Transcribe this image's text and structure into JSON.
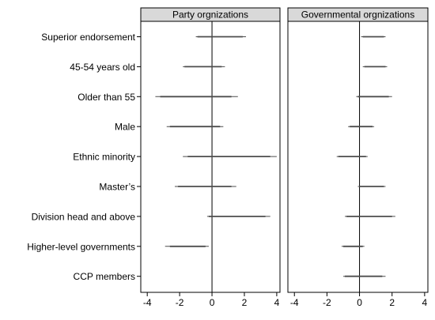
{
  "chart_data": {
    "type": "coefficient-plot",
    "categories": [
      "Superior endorsement",
      "45-54 years old",
      "Older than 55",
      "Male",
      "Ethnic minority",
      "Master’s",
      "Division head and above",
      "Higher-level governments",
      "CCP members"
    ],
    "x_ticks": [
      -4,
      -2,
      0,
      2,
      4
    ],
    "xlim": [
      -4.4,
      4.2
    ],
    "reference_line_x": 0,
    "colors": {
      "line": "#4d4d4d",
      "panel_header": "#d9d9d9",
      "frame": "#000000"
    },
    "panels": [
      {
        "title": "Party orgnizations",
        "intervals": [
          {
            "inner": [
              -0.9,
              1.9
            ],
            "outer": [
              -1.0,
              2.1
            ]
          },
          {
            "inner": [
              -1.7,
              0.6
            ],
            "outer": [
              -1.8,
              0.8
            ]
          },
          {
            "inner": [
              -3.2,
              1.2
            ],
            "outer": [
              -3.5,
              1.6
            ]
          },
          {
            "inner": [
              -2.6,
              0.5
            ],
            "outer": [
              -2.8,
              0.7
            ]
          },
          {
            "inner": [
              -1.5,
              3.6
            ],
            "outer": [
              -1.8,
              4.0
            ]
          },
          {
            "inner": [
              -2.1,
              1.2
            ],
            "outer": [
              -2.3,
              1.5
            ]
          },
          {
            "inner": [
              -0.2,
              3.3
            ],
            "outer": [
              -0.3,
              3.6
            ]
          },
          {
            "inner": [
              -2.6,
              -0.4
            ],
            "outer": [
              -2.9,
              -0.2
            ]
          },
          {
            "inner": null,
            "outer": null
          }
        ]
      },
      {
        "title": "Governmental orgnizations",
        "intervals": [
          {
            "inner": [
              0.2,
              1.5
            ],
            "outer": [
              0.1,
              1.6
            ]
          },
          {
            "inner": [
              0.3,
              1.6
            ],
            "outer": [
              0.2,
              1.7
            ]
          },
          {
            "inner": [
              -0.1,
              1.8
            ],
            "outer": [
              -0.2,
              2.0
            ]
          },
          {
            "inner": [
              -0.6,
              0.8
            ],
            "outer": [
              -0.7,
              0.9
            ]
          },
          {
            "inner": [
              -1.3,
              0.4
            ],
            "outer": [
              -1.4,
              0.5
            ]
          },
          {
            "inner": [
              0.0,
              1.5
            ],
            "outer": [
              -0.1,
              1.6
            ]
          },
          {
            "inner": [
              -0.8,
              2.0
            ],
            "outer": [
              -0.9,
              2.2
            ]
          },
          {
            "inner": [
              -1.0,
              0.2
            ],
            "outer": [
              -1.1,
              0.3
            ]
          },
          {
            "inner": [
              -0.9,
              1.4
            ],
            "outer": [
              -1.0,
              1.6
            ]
          }
        ]
      }
    ]
  }
}
